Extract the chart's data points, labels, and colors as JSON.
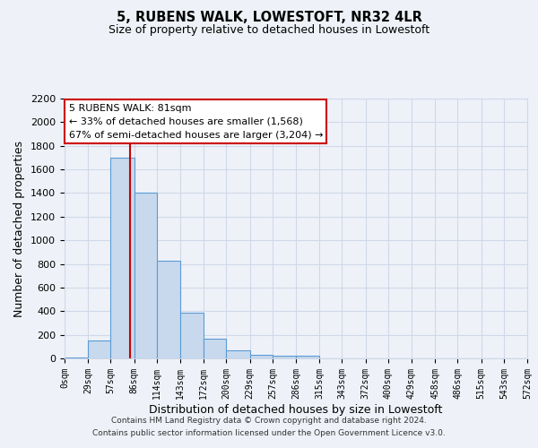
{
  "title": "5, RUBENS WALK, LOWESTOFT, NR32 4LR",
  "subtitle": "Size of property relative to detached houses in Lowestoft",
  "xlabel": "Distribution of detached houses by size in Lowestoft",
  "ylabel": "Number of detached properties",
  "bin_edges": [
    0,
    29,
    57,
    86,
    114,
    143,
    172,
    200,
    229,
    257,
    286,
    315,
    343,
    372,
    400,
    429,
    458,
    486,
    515,
    543,
    572
  ],
  "bar_heights": [
    10,
    155,
    1700,
    1400,
    830,
    390,
    165,
    65,
    30,
    20,
    20,
    0,
    0,
    0,
    0,
    0,
    0,
    0,
    0,
    0
  ],
  "bar_color": "#c8d9ed",
  "bar_edge_color": "#5b9bd5",
  "grid_color": "#d0d8e8",
  "bg_color": "#eef2f8",
  "property_line_x": 81,
  "annotation_title": "5 RUBENS WALK: 81sqm",
  "annotation_line1": "← 33% of detached houses are smaller (1,568)",
  "annotation_line2": "67% of semi-detached houses are larger (3,204) →",
  "annotation_box_color": "#ffffff",
  "annotation_box_edge": "#cc0000",
  "property_line_color": "#cc0000",
  "footer1": "Contains HM Land Registry data © Crown copyright and database right 2024.",
  "footer2": "Contains public sector information licensed under the Open Government Licence v3.0.",
  "tick_labels": [
    "0sqm",
    "29sqm",
    "57sqm",
    "86sqm",
    "114sqm",
    "143sqm",
    "172sqm",
    "200sqm",
    "229sqm",
    "257sqm",
    "286sqm",
    "315sqm",
    "343sqm",
    "372sqm",
    "400sqm",
    "429sqm",
    "458sqm",
    "486sqm",
    "515sqm",
    "543sqm",
    "572sqm"
  ],
  "ylim": [
    0,
    2200
  ],
  "yticks": [
    0,
    200,
    400,
    600,
    800,
    1000,
    1200,
    1400,
    1600,
    1800,
    2000,
    2200
  ]
}
